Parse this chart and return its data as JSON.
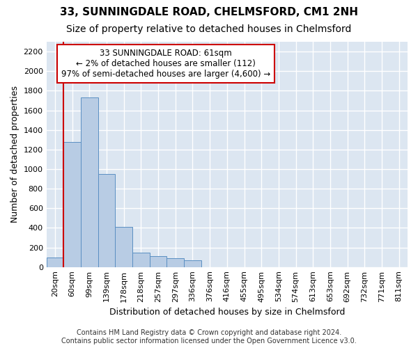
{
  "title": "33, SUNNINGDALE ROAD, CHELMSFORD, CM1 2NH",
  "subtitle": "Size of property relative to detached houses in Chelmsford",
  "xlabel": "Distribution of detached houses by size in Chelmsford",
  "ylabel": "Number of detached properties",
  "bar_color": "#b8cce4",
  "bar_edge_color": "#5a8fc2",
  "background_color": "#dce6f1",
  "grid_color": "#ffffff",
  "annotation_lines": [
    "33 SUNNINGDALE ROAD: 61sqm",
    "← 2% of detached houses are smaller (112)",
    "97% of semi-detached houses are larger (4,600) →"
  ],
  "categories": [
    "20sqm",
    "60sqm",
    "99sqm",
    "139sqm",
    "178sqm",
    "218sqm",
    "257sqm",
    "297sqm",
    "336sqm",
    "376sqm",
    "416sqm",
    "455sqm",
    "495sqm",
    "534sqm",
    "574sqm",
    "613sqm",
    "653sqm",
    "692sqm",
    "732sqm",
    "771sqm",
    "811sqm"
  ],
  "values": [
    100,
    1280,
    1730,
    950,
    410,
    150,
    110,
    90,
    70,
    0,
    0,
    0,
    0,
    0,
    0,
    0,
    0,
    0,
    0,
    0,
    0
  ],
  "ylim": [
    0,
    2300
  ],
  "yticks": [
    0,
    200,
    400,
    600,
    800,
    1000,
    1200,
    1400,
    1600,
    1800,
    2000,
    2200
  ],
  "footer": "Contains HM Land Registry data © Crown copyright and database right 2024.\nContains public sector information licensed under the Open Government Licence v3.0.",
  "title_fontsize": 11,
  "subtitle_fontsize": 10,
  "xlabel_fontsize": 9,
  "ylabel_fontsize": 9,
  "tick_fontsize": 8,
  "annotation_fontsize": 8.5,
  "footer_fontsize": 7
}
